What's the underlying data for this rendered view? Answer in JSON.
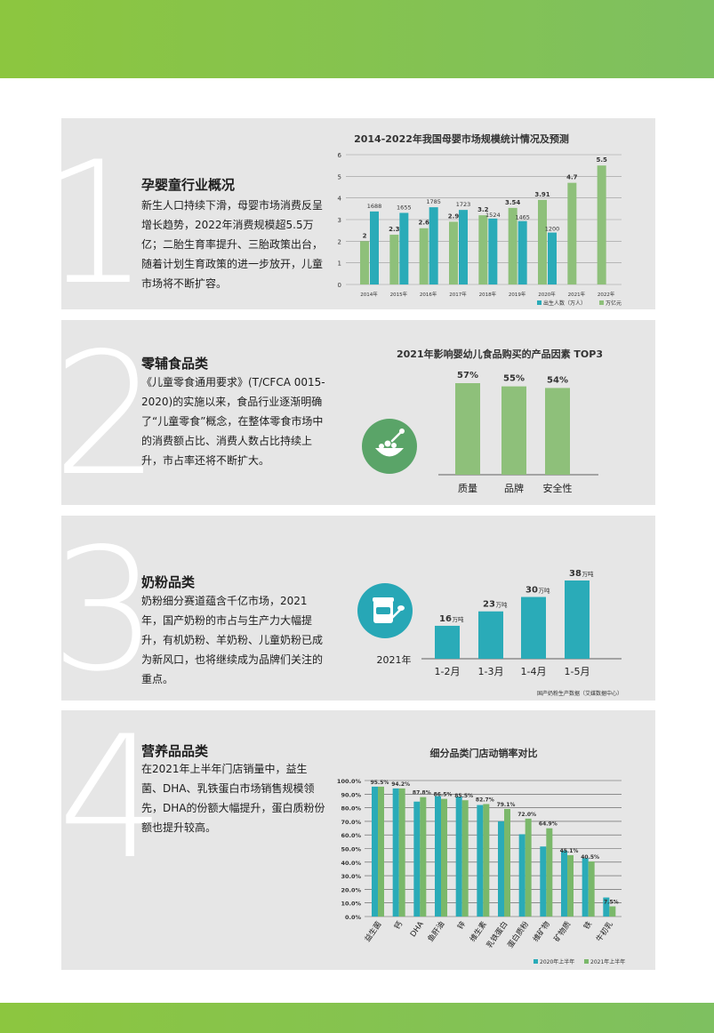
{
  "colors": {
    "teal": "#2aabb8",
    "green": "#8ec07a",
    "green2": "#7ab86a",
    "band": "#8cc63f"
  },
  "sections": [
    {
      "number": "1",
      "title": "孕婴童行业概况",
      "body": "新生人口持续下滑，母婴市场消费反呈增长趋势，2022年消费规模超5.5万亿；二胎生育率提升、三胎政策出台，随着计划生育政策的进一步放开，儿童市场将不断扩容。"
    },
    {
      "number": "2",
      "title": "零辅食品类",
      "body": "《儿童零食通用要求》(T/CFCA 0015-2020)的实施以来，食品行业逐渐明确了“儿童零食”概念，在整体零食市场中的消费额占比、消费人数占比持续上升，市占率还将不断扩大。",
      "icon": "food-bowl-icon"
    },
    {
      "number": "3",
      "title": "奶粉品类",
      "body": "奶粉细分赛道蕴含千亿市场，2021年，国产奶粉的市占与生产力大幅提升，有机奶粉、羊奶粉、儿童奶粉已成为新风口，也将继续成为品牌们关注的重点。",
      "icon": "milk-powder-icon"
    },
    {
      "number": "4",
      "title": "营养品品类",
      "body": "在2021年上半年门店销量中，益生菌、DHA、乳铁蛋白市场销售规模领先，DHA的份额大幅提升，蛋白质粉份额也提升较高。"
    }
  ],
  "chart_data": [
    {
      "type": "bar",
      "title": "2014-2022年我国母婴市场规模统计情况及预测",
      "categories": [
        "2014年",
        "2015年",
        "2016年",
        "2017年",
        "2018年",
        "2019年",
        "2020年",
        "2021年",
        "2022年"
      ],
      "ylim": [
        0,
        6
      ],
      "yticks": [
        "0",
        "1",
        "2",
        "3",
        "4",
        "5",
        "6"
      ],
      "grid": true,
      "legend_position": "bottom-right",
      "series": [
        {
          "name": "万亿元",
          "values": [
            2,
            2.3,
            2.6,
            2.9,
            3.2,
            3.54,
            3.91,
            4.7,
            5.5
          ],
          "labels": [
            "2",
            "2.3",
            "2.6",
            "2.9",
            "3.2",
            "3.54",
            "3.91",
            "4.7",
            "5.5"
          ]
        },
        {
          "name": "出生人数（万人）",
          "values": [
            1688,
            1655,
            1785,
            1723,
            1524,
            1465,
            1200,
            null,
            null
          ],
          "labels": [
            "1688",
            "1655",
            "1785",
            "1723",
            "1524",
            "1465",
            "1200",
            "",
            ""
          ]
        }
      ],
      "legend": [
        "出生人数（万人）",
        "万亿元"
      ]
    },
    {
      "type": "bar",
      "title": "2021年影响婴幼儿食品购买的产品因素 TOP3",
      "categories": [
        "质量",
        "品牌",
        "安全性"
      ],
      "values": [
        57,
        55,
        54
      ],
      "labels": [
        "57%",
        "55%",
        "54%"
      ],
      "ylim": [
        0,
        60
      ]
    },
    {
      "type": "bar",
      "year_label": "2021年",
      "categories": [
        "1-2月",
        "1-3月",
        "1-4月",
        "1-5月"
      ],
      "values": [
        16,
        23,
        30,
        38
      ],
      "labels": [
        "16",
        "23",
        "30",
        "38"
      ],
      "unit": "万吨",
      "source": "国产奶粉生产数据（艾媒数据中心）",
      "ylim": [
        0,
        40
      ]
    },
    {
      "type": "bar",
      "title": "细分品类门店动销率对比",
      "categories": [
        "益生菌",
        "钙",
        "DHA",
        "鱼肝油",
        "锌",
        "维生素",
        "乳铁蛋白",
        "蛋白质粉",
        "维矿物",
        "矿物质",
        "铁",
        "牛初乳"
      ],
      "ylim": [
        0,
        100
      ],
      "yticks": [
        "0.0%",
        "10.0%",
        "20.0%",
        "30.0%",
        "40.0%",
        "50.0%",
        "60.0%",
        "70.0%",
        "80.0%",
        "90.0%",
        "100.0%"
      ],
      "grid": true,
      "legend_position": "bottom-right",
      "series": [
        {
          "name": "2020年上半年",
          "values": [
            95.5,
            94.2,
            84.5,
            88.5,
            88.2,
            82.0,
            70.0,
            60.5,
            51.5,
            48.5,
            43.0,
            14.0
          ]
        },
        {
          "name": "2021年上半年",
          "values": [
            95.5,
            94.2,
            87.8,
            86.5,
            85.5,
            82.7,
            79.1,
            72.0,
            64.9,
            45.1,
            40.5,
            7.5
          ],
          "labels": [
            "95.5%",
            "94.2%",
            "87.8%",
            "86.5%",
            "85.5%",
            "82.7%",
            "79.1%",
            "72.0%",
            "64.9%",
            "45.1%",
            "40.5%",
            "7.5%"
          ]
        }
      ],
      "legend": [
        "2020年上半年",
        "2021年上半年"
      ]
    }
  ]
}
